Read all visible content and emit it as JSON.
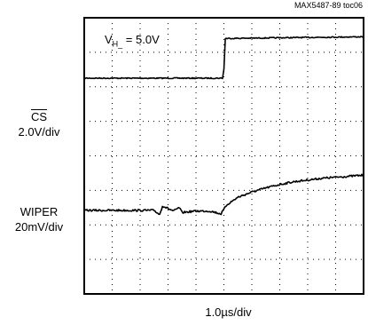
{
  "figure_id": "MAX5487-89 toc06",
  "annotation": {
    "prefix": "V",
    "subscript": "H_",
    "value": " = 5.0V"
  },
  "channels": [
    {
      "name": "CS",
      "scale": "2.0V/div"
    },
    {
      "name": "WIPER",
      "scale": "20mV/div"
    }
  ],
  "x_scale": "1.0µs/div",
  "colors": {
    "trace": "#000000",
    "grid": "#000000",
    "background": "#ffffff"
  },
  "chart_data": {
    "type": "line",
    "title": "",
    "xlabel": "1.0µs/div",
    "ylabel": "",
    "grid": true,
    "xlim": [
      0,
      10
    ],
    "ylim": [
      0,
      8
    ],
    "x_unit": "div",
    "y_unit": "div",
    "series": [
      {
        "name": "CS",
        "x": [
          0,
          4.95,
          5.0,
          5.05,
          10
        ],
        "y": [
          6.25,
          6.25,
          6.5,
          7.4,
          7.45
        ]
      },
      {
        "name": "WIPER",
        "x": [
          0,
          2.5,
          2.7,
          2.8,
          3.2,
          3.4,
          3.5,
          4.0,
          4.5,
          4.9,
          5.0,
          5.1,
          5.5,
          6.0,
          6.5,
          7.0,
          7.5,
          8.0,
          8.5,
          9.0,
          10
        ],
        "y": [
          2.42,
          2.42,
          2.3,
          2.55,
          2.4,
          2.5,
          2.36,
          2.4,
          2.4,
          2.32,
          2.45,
          2.58,
          2.8,
          2.95,
          3.07,
          3.17,
          3.25,
          3.3,
          3.35,
          3.38,
          3.44
        ]
      }
    ]
  }
}
